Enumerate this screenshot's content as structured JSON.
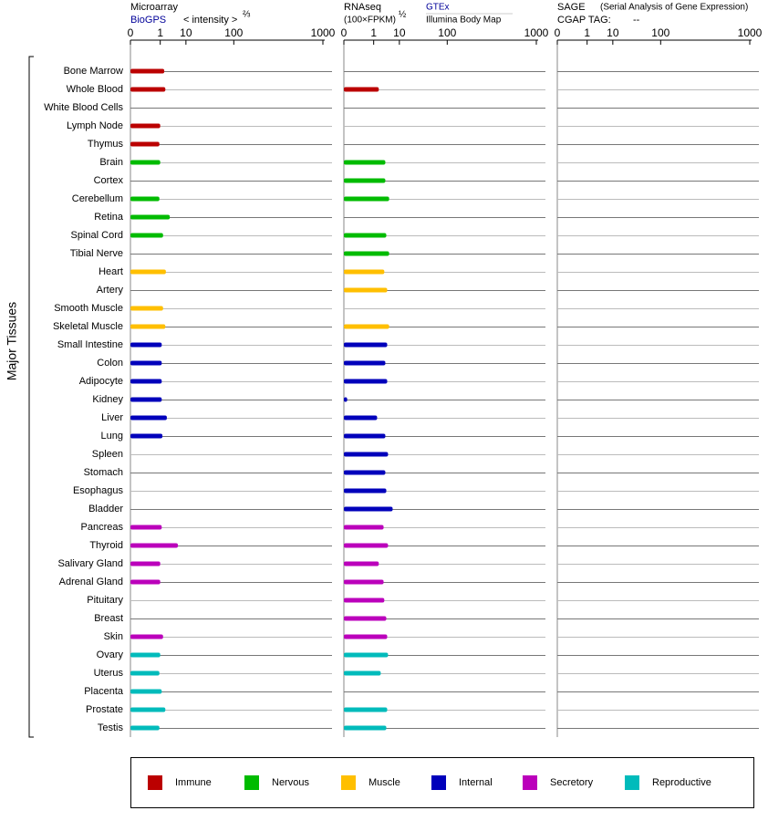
{
  "chart_data": {
    "type": "bar",
    "ylabel": "Major Tissues",
    "categories": [
      "Bone Marrow",
      "Whole Blood",
      "White Blood Cells",
      "Lymph Node",
      "Thymus",
      "Brain",
      "Cortex",
      "Cerebellum",
      "Retina",
      "Spinal Cord",
      "Tibial Nerve",
      "Heart",
      "Artery",
      "Smooth Muscle",
      "Skeletal Muscle",
      "Small Intestine",
      "Colon",
      "Adipocyte",
      "Kidney",
      "Liver",
      "Lung",
      "Spleen",
      "Stomach",
      "Esophagus",
      "Bladder",
      "Pancreas",
      "Thyroid",
      "Salivary Gland",
      "Adrenal Gland",
      "Pituitary",
      "Breast",
      "Skin",
      "Ovary",
      "Uterus",
      "Placenta",
      "Prostate",
      "Testis"
    ],
    "groups": [
      {
        "name": "Immune",
        "color": "#bb0000"
      },
      {
        "name": "Nervous",
        "color": "#00bb00"
      },
      {
        "name": "Muscle",
        "color": "#ffbf00"
      },
      {
        "name": "Internal",
        "color": "#0000bb"
      },
      {
        "name": "Secretory",
        "color": "#bb00bb"
      },
      {
        "name": "Reproductive",
        "color": "#00bbbb"
      }
    ],
    "category_group": [
      0,
      0,
      0,
      0,
      0,
      1,
      1,
      1,
      1,
      1,
      1,
      2,
      2,
      2,
      2,
      3,
      3,
      3,
      3,
      3,
      3,
      3,
      3,
      3,
      3,
      4,
      4,
      4,
      4,
      4,
      4,
      4,
      5,
      5,
      5,
      5,
      5
    ],
    "xlim": [
      0,
      1000
    ],
    "xticks": [
      0,
      1,
      10,
      100,
      1000
    ],
    "panels": [
      {
        "title": "Microarray",
        "source": "BioGPS",
        "unit": "< intensity >",
        "unit_exp": "⅔",
        "values": [
          1.6,
          1.8,
          null,
          1.0,
          0.9,
          1.0,
          null,
          0.9,
          2.8,
          1.4,
          null,
          1.9,
          null,
          1.4,
          1.8,
          1.2,
          1.2,
          1.2,
          1.2,
          2.1,
          1.3,
          null,
          null,
          null,
          null,
          1.2,
          5.6,
          1.0,
          1.0,
          null,
          null,
          1.4,
          1.0,
          0.9,
          1.2,
          1.8,
          0.9
        ]
      },
      {
        "title": "RNAseq",
        "unit": "(100×FPKM)",
        "unit_exp": "½",
        "source": "GTEx",
        "source2": "Illumina Body Map",
        "values": [
          null,
          1.8,
          null,
          null,
          null,
          3.4,
          3.4,
          4.7,
          null,
          3.7,
          4.7,
          3.1,
          4.0,
          null,
          4.7,
          4.0,
          3.4,
          4.0,
          0.0003,
          1.5,
          3.4,
          4.3,
          3.4,
          3.7,
          6.2,
          2.9,
          4.3,
          1.8,
          2.9,
          3.1,
          3.7,
          4.0,
          4.3,
          2.2,
          null,
          4.0,
          3.7
        ]
      },
      {
        "title": "SAGE",
        "subtitle": "(Serial Analysis of Gene Expression)",
        "tag_label": "CGAP TAG:",
        "tag": "--",
        "values": [
          null,
          null,
          null,
          null,
          null,
          null,
          null,
          null,
          null,
          null,
          null,
          null,
          null,
          null,
          null,
          null,
          null,
          null,
          null,
          null,
          null,
          null,
          null,
          null,
          null,
          null,
          null,
          null,
          null,
          null,
          null,
          null,
          null,
          null,
          null,
          null,
          null
        ]
      }
    ]
  }
}
